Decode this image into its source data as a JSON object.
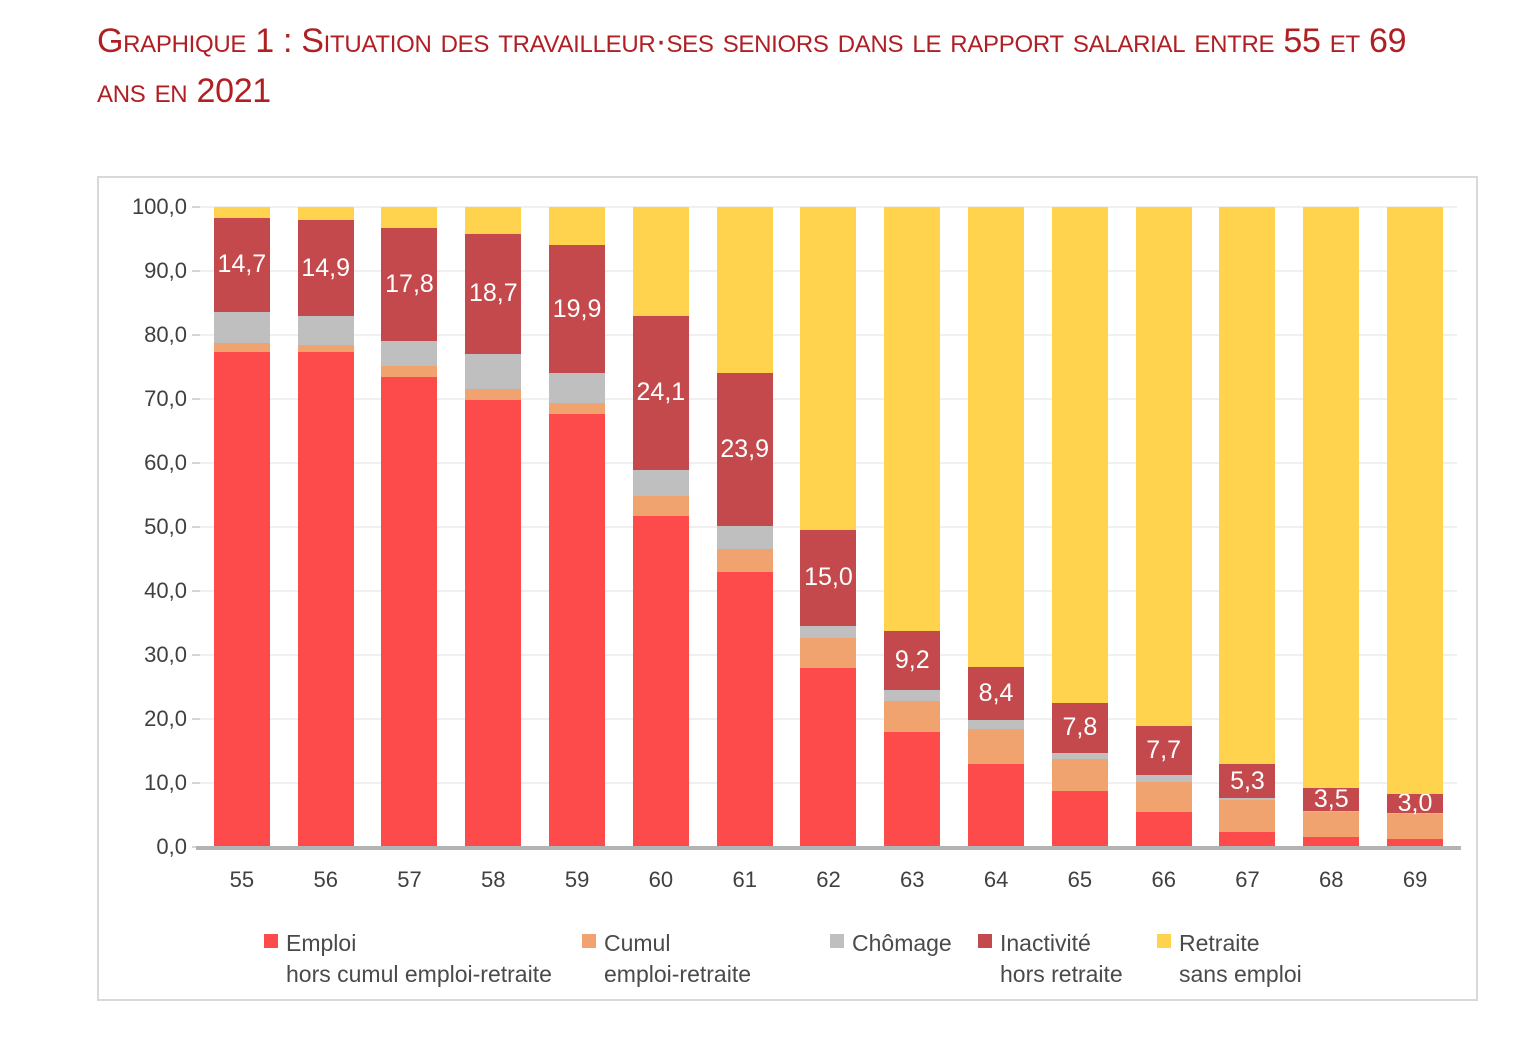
{
  "title": {
    "lines": [
      "Graphique 1 : Situation des travailleur·ses seniors dans le rapport salarial entre 55 et 69",
      "ans en 2021"
    ],
    "color": "#B01F24"
  },
  "chart_data": {
    "type": "bar",
    "stacked": true,
    "categories": [
      "55",
      "56",
      "57",
      "58",
      "59",
      "60",
      "61",
      "62",
      "63",
      "64",
      "65",
      "66",
      "67",
      "68",
      "69"
    ],
    "series": [
      {
        "name": "Emploi hors cumul emploi-retraite",
        "color": "#FD4B4B",
        "values": [
          77.3,
          77.3,
          73.5,
          69.9,
          67.7,
          51.7,
          42.9,
          28.0,
          18.0,
          13.0,
          8.8,
          5.5,
          2.3,
          1.6,
          1.2
        ]
      },
      {
        "name": "Cumul emploi-retraite",
        "color": "#F0A36E",
        "values": [
          1.5,
          1.2,
          1.6,
          1.7,
          1.7,
          3.2,
          3.6,
          4.6,
          4.8,
          5.4,
          4.9,
          4.7,
          5.0,
          3.9,
          3.9
        ]
      },
      {
        "name": "Chômage",
        "color": "#BFBFBF",
        "values": [
          4.8,
          4.5,
          3.9,
          5.5,
          4.7,
          4.0,
          3.7,
          2.0,
          1.8,
          1.4,
          1.0,
          1.0,
          0.3,
          0.2,
          0.2
        ]
      },
      {
        "name": "Inactivité hors retraite",
        "color": "#C4494C",
        "values": [
          14.7,
          14.9,
          17.8,
          18.7,
          19.9,
          24.1,
          23.9,
          15.0,
          9.2,
          8.4,
          7.8,
          7.7,
          5.3,
          3.5,
          3.0
        ],
        "data_labels": [
          "14,7",
          "14,9",
          "17,8",
          "18,7",
          "19,9",
          "24,1",
          "23,9",
          "15,0",
          "9,2",
          "8,4",
          "7,8",
          "7,7",
          "5,3",
          "3,5",
          "3,0"
        ]
      },
      {
        "name": "Retraite sans emploi",
        "color": "#FFD34D",
        "values": [
          1.7,
          2.1,
          3.2,
          4.2,
          6.0,
          17.0,
          25.9,
          50.4,
          66.2,
          71.8,
          77.5,
          81.1,
          87.1,
          90.8,
          91.7
        ]
      }
    ],
    "ylim": [
      0,
      100
    ],
    "ytick_labels": [
      "100,0",
      "90,0",
      "80,0",
      "70,0",
      "60,0",
      "50,0",
      "40,0",
      "30,0",
      "20,0",
      "10,0",
      "0,0"
    ],
    "grid": true,
    "legend_position": "bottom"
  },
  "legend": {
    "items": [
      {
        "line1": "Emploi",
        "line2": "hors cumul emploi-retraite",
        "color": "#FD4B4B"
      },
      {
        "line1": "Cumul",
        "line2": "emploi-retraite",
        "color": "#F0A36E"
      },
      {
        "line1": "Chômage",
        "line2": "",
        "color": "#BFBFBF"
      },
      {
        "line1": "Inactivité",
        "line2": "hors retraite",
        "color": "#C4494C"
      },
      {
        "line1": "Retraite",
        "line2": "sans emploi",
        "color": "#FFD34D"
      }
    ]
  }
}
